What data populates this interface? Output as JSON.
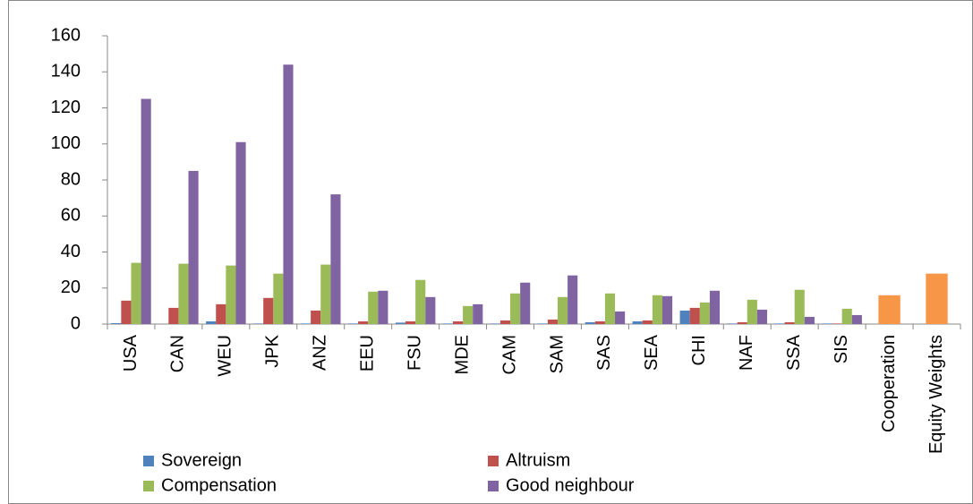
{
  "chart_data": {
    "type": "bar",
    "categories": [
      "USA",
      "CAN",
      "WEU",
      "JPK",
      "ANZ",
      "EEU",
      "FSU",
      "MDE",
      "CAM",
      "SAM",
      "SAS",
      "SEA",
      "CHI",
      "NAF",
      "SSA",
      "SIS",
      "Cooperation",
      "Equity Weights"
    ],
    "series": [
      {
        "name": "Sovereign",
        "color": "#4f81bd",
        "values": [
          0.5,
          0,
          1.5,
          0.3,
          0.3,
          0.3,
          0.8,
          0.3,
          0.3,
          0.3,
          1,
          1.5,
          7.5,
          0.3,
          0.3,
          0.3,
          null,
          null
        ]
      },
      {
        "name": "Altruism",
        "color": "#c0504d",
        "values": [
          13,
          9,
          11,
          14.5,
          7.5,
          1.5,
          1.5,
          1.5,
          2,
          2.5,
          1.5,
          2,
          9,
          1,
          1,
          0.3,
          null,
          null
        ]
      },
      {
        "name": "Compensation",
        "color": "#9bbb59",
        "values": [
          34,
          33.5,
          32.5,
          28,
          33,
          18,
          24.5,
          10,
          17,
          15,
          17,
          16,
          12,
          13.5,
          19,
          8.5,
          null,
          null
        ]
      },
      {
        "name": "Good neighbour",
        "color": "#8064a2",
        "values": [
          125,
          85,
          101,
          144,
          72,
          18.5,
          15,
          11,
          23,
          27,
          7,
          15.5,
          18.5,
          8,
          4,
          5,
          null,
          null
        ]
      },
      {
        "color": "#f79646",
        "values": [
          null,
          null,
          null,
          null,
          null,
          null,
          null,
          null,
          null,
          null,
          null,
          null,
          null,
          null,
          null,
          null,
          16,
          28
        ]
      }
    ],
    "ylim": [
      0,
      160
    ],
    "yticks": [
      0,
      20,
      40,
      60,
      80,
      100,
      120,
      140,
      160
    ],
    "grid": false
  }
}
